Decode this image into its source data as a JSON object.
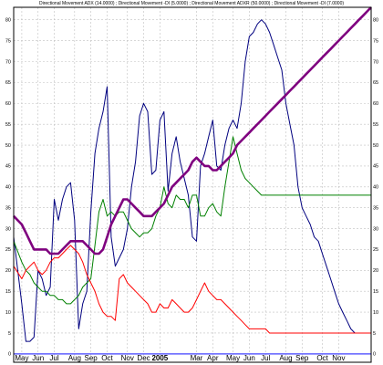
{
  "chart_data": {
    "type": "line",
    "title": "Directional Movement ADX (14.0000) ; Directional Movement -DI (5.0000) ; Directional Movement ADXR (50.0000) ; Directional Movement -DI (7.0000)",
    "xlabel": "",
    "ylabel": "",
    "ylim": [
      -2,
      83
    ],
    "x": [
      0,
      2,
      3,
      4,
      5,
      6,
      7,
      8,
      9,
      10,
      11,
      12,
      13,
      14,
      15,
      16,
      17,
      18,
      19,
      20,
      21,
      22,
      23,
      24,
      25,
      26,
      27,
      28,
      29,
      30,
      31,
      32,
      33,
      34,
      35,
      36,
      37,
      38,
      39,
      40,
      41,
      42,
      43,
      44,
      45,
      46,
      47,
      48,
      49,
      50,
      51,
      52,
      53,
      54,
      55,
      56,
      57,
      58,
      59,
      60,
      61,
      62,
      63,
      64,
      65,
      66,
      67,
      68,
      69,
      70,
      71,
      72,
      73,
      74,
      75,
      76,
      77,
      78,
      79,
      80,
      81,
      82,
      83,
      84,
      85,
      86,
      87,
      88
    ],
    "series": [
      {
        "color": "#00007f",
        "values": [
          28,
          12,
          3,
          3,
          4,
          20,
          18,
          14,
          16,
          37,
          32,
          37,
          40,
          41,
          32,
          6,
          12,
          15,
          34,
          48,
          54,
          58,
          64,
          28,
          21,
          23,
          25,
          30,
          40,
          46,
          57,
          60,
          58,
          43,
          44,
          56,
          58,
          39,
          48,
          52,
          46,
          42,
          38,
          28,
          27,
          45,
          48,
          52,
          56,
          45,
          44,
          50,
          54,
          56,
          54,
          60,
          70,
          76,
          77,
          79,
          80,
          79,
          77,
          74,
          71,
          68,
          60,
          55,
          50,
          40,
          35,
          33,
          31,
          28,
          27,
          24,
          21,
          18,
          15,
          12,
          10,
          8,
          6,
          5,
          5,
          5,
          5,
          5
        ]
      },
      {
        "color": "#008000",
        "values": [
          27,
          22,
          20,
          19,
          17,
          16,
          15,
          15,
          14,
          14,
          13,
          13,
          12,
          12,
          13,
          14,
          16,
          17,
          18,
          26,
          34,
          37,
          33,
          34,
          33,
          34,
          34,
          32,
          30,
          29,
          28,
          29,
          29,
          30,
          33,
          35,
          40,
          36,
          35,
          38,
          37,
          37,
          35,
          38,
          38,
          33,
          33,
          35,
          36,
          34,
          33,
          40,
          46,
          52,
          48,
          44,
          42,
          41,
          40,
          39,
          38,
          38,
          38,
          38,
          38,
          38,
          38,
          38,
          38,
          38,
          38,
          38,
          38,
          38,
          38,
          38,
          38,
          38,
          38,
          38,
          38,
          38,
          38,
          38,
          38,
          38,
          38,
          38
        ]
      },
      {
        "color": "#ff0000",
        "values": [
          21,
          18,
          20,
          21,
          22,
          20,
          19,
          20,
          22,
          23,
          23,
          24,
          25,
          26,
          25,
          24,
          22,
          19,
          17,
          15,
          12,
          10,
          9,
          9,
          8,
          18,
          19,
          17,
          16,
          15,
          14,
          13,
          12,
          10,
          10,
          12,
          11,
          11,
          13,
          12,
          11,
          10,
          10,
          11,
          13,
          15,
          17,
          15,
          14,
          13,
          13,
          12,
          11,
          10,
          9,
          8,
          7,
          6,
          6,
          6,
          6,
          6,
          5,
          5,
          5,
          5,
          5,
          5,
          5,
          5,
          5,
          5,
          5,
          5,
          5,
          5,
          5,
          5,
          5,
          5,
          5,
          5,
          5,
          5,
          5,
          5,
          5,
          5
        ]
      },
      {
        "color": "#7f007f",
        "values": [
          33,
          31,
          29,
          27,
          25,
          25,
          25,
          25,
          24,
          24,
          24,
          25,
          26,
          27,
          27,
          27,
          27,
          26,
          25,
          24,
          24,
          25,
          28,
          31,
          33,
          35,
          37,
          37,
          36,
          35,
          34,
          33,
          33,
          33,
          34,
          35,
          36,
          38,
          40,
          41,
          42,
          43,
          44,
          46,
          47,
          46,
          45,
          45,
          44,
          44,
          45,
          46,
          47,
          48,
          50,
          51,
          52,
          53,
          54,
          55,
          56,
          57,
          58,
          59,
          60,
          61,
          62,
          63,
          64,
          65,
          66,
          67,
          68,
          69,
          70,
          71,
          72,
          73,
          74,
          75,
          76,
          77,
          78,
          79,
          80,
          81,
          82,
          83
        ]
      }
    ],
    "x_ticks": [
      {
        "label": "May",
        "x": 2
      },
      {
        "label": "Jun",
        "x": 6
      },
      {
        "label": "Jul",
        "x": 10
      },
      {
        "label": "Aug",
        "x": 15
      },
      {
        "label": "Sep",
        "x": 19
      },
      {
        "label": "Oct",
        "x": 23
      },
      {
        "label": "Nov",
        "x": 28
      },
      {
        "label": "Dec",
        "x": 32
      },
      {
        "label": "2005",
        "x": 36
      },
      {
        "label": "Mar",
        "x": 45
      },
      {
        "label": "Apr",
        "x": 49
      },
      {
        "label": "May",
        "x": 54
      },
      {
        "label": "Jun",
        "x": 58
      },
      {
        "label": "Jul",
        "x": 62
      },
      {
        "label": "Aug",
        "x": 67
      },
      {
        "label": "Sep",
        "x": 71
      },
      {
        "label": "Oct",
        "x": 76
      },
      {
        "label": "Nov",
        "x": 80
      }
    ],
    "y_ticks": [
      0,
      5,
      10,
      15,
      20,
      25,
      30,
      35,
      40,
      45,
      50,
      55,
      60,
      65,
      70,
      75,
      80
    ],
    "reference_line": {
      "value": 0,
      "color": "#4040ff"
    },
    "grid": true
  }
}
